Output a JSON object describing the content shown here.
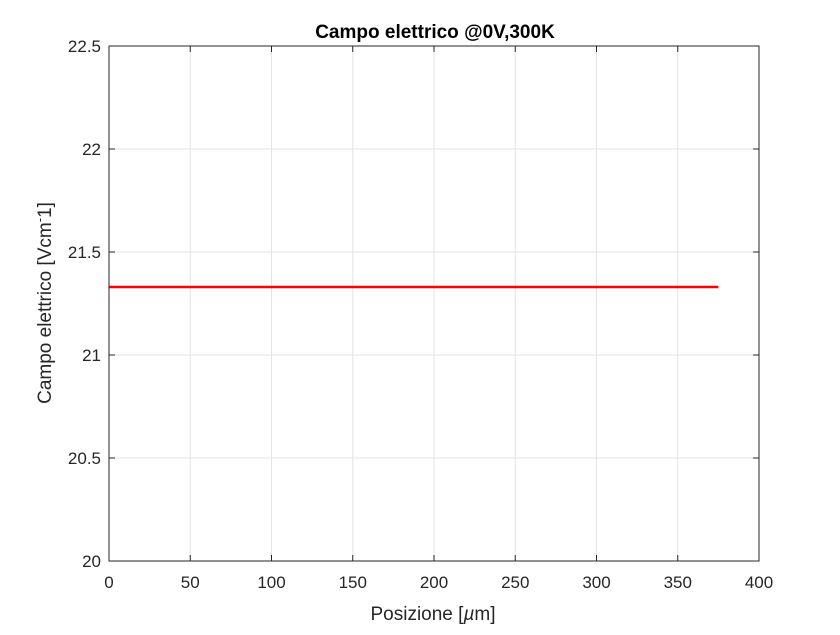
{
  "chart_data": {
    "type": "line",
    "title": "Campo elettrico @0V,300K",
    "xlabel": "Posizione [µm]",
    "ylabel": "Campo elettrico [Vcm^-1]",
    "xlim": [
      0,
      400
    ],
    "ylim": [
      20,
      22.5
    ],
    "xticks": [
      0,
      50,
      100,
      150,
      200,
      250,
      300,
      350,
      400
    ],
    "yticks": [
      20,
      20.5,
      21,
      21.5,
      22,
      22.5
    ],
    "xtick_labels": [
      "0",
      "50",
      "100",
      "150",
      "200",
      "250",
      "300",
      "350",
      "400"
    ],
    "ytick_labels": [
      "20",
      "20.5",
      "21",
      "21.5",
      "22",
      "22.5"
    ],
    "grid": true,
    "series": [
      {
        "color": "#ff0000",
        "x": [
          0,
          375
        ],
        "y": [
          21.33,
          21.33
        ]
      }
    ]
  },
  "colors": {
    "grid": "#e3e3e3",
    "axis": "#262626",
    "line": "#ff0000"
  }
}
